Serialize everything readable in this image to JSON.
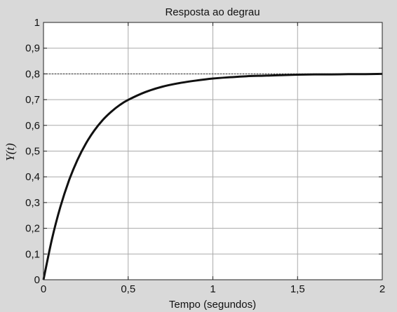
{
  "chart_data": {
    "type": "line",
    "title": "Resposta ao degrau",
    "xlabel": "Tempo (segundos)",
    "ylabel": "Y(t)",
    "xlim": [
      0,
      2
    ],
    "ylim": [
      0,
      1
    ],
    "x_ticks": [
      0,
      0.5,
      1,
      1.5,
      2
    ],
    "x_tick_labels": [
      "0",
      "0,5",
      "1",
      "1,5",
      "2"
    ],
    "y_ticks": [
      0,
      0.1,
      0.2,
      0.3,
      0.4,
      0.5,
      0.6,
      0.7,
      0.8,
      0.9,
      1
    ],
    "y_tick_labels": [
      "0",
      "0,1",
      "0,2",
      "0,3",
      "0,4",
      "0,5",
      "0,6",
      "0,7",
      "0,8",
      "0,9",
      "1"
    ],
    "grid": true,
    "reference_line": {
      "y": 0.8,
      "style": "dashed"
    },
    "series": [
      {
        "x": [
          0,
          0.05,
          0.1,
          0.15,
          0.2,
          0.25,
          0.3,
          0.35,
          0.4,
          0.45,
          0.5,
          0.6,
          0.7,
          0.8,
          0.9,
          1.0,
          1.1,
          1.2,
          1.3,
          1.4,
          1.5,
          1.6,
          1.7,
          1.8,
          1.9,
          2.0
        ],
        "y": [
          0,
          0.158,
          0.284,
          0.385,
          0.465,
          0.529,
          0.58,
          0.621,
          0.653,
          0.679,
          0.699,
          0.729,
          0.75,
          0.764,
          0.774,
          0.782,
          0.787,
          0.791,
          0.793,
          0.795,
          0.797,
          0.798,
          0.798,
          0.799,
          0.799,
          0.8
        ]
      }
    ],
    "colors": {
      "line": "#111111",
      "grid": "#aaaaaa",
      "plot_bg": "#ffffff",
      "figure_bg": "#d9d9d9"
    }
  }
}
